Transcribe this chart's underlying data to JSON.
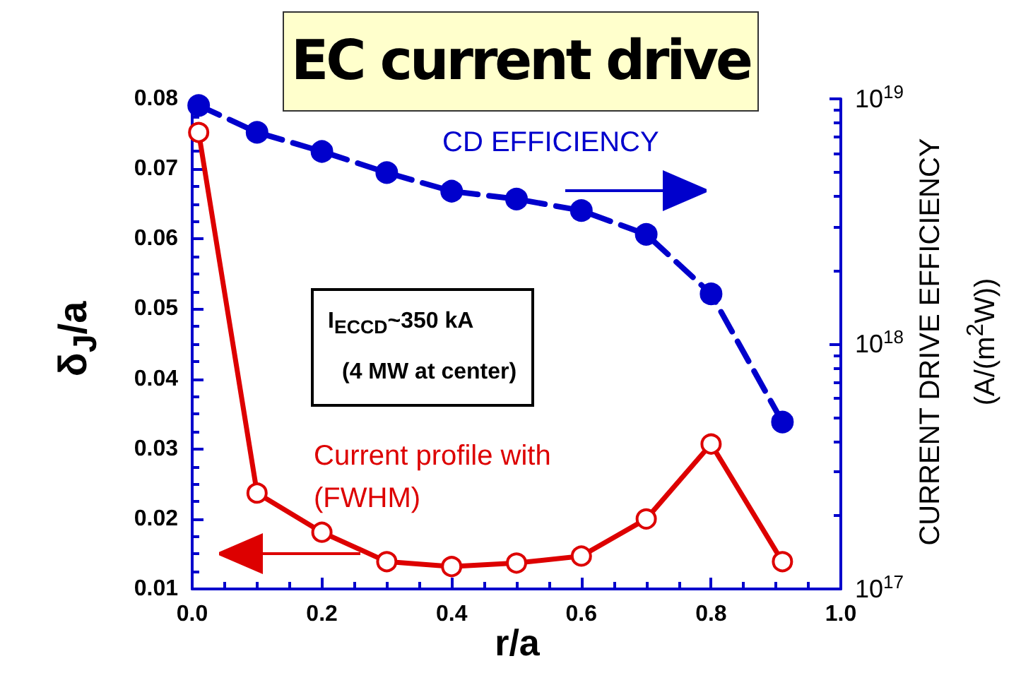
{
  "chart_data": {
    "type": "line",
    "title": "EC current drive",
    "xlabel": "r/a",
    "ylabel": "δ$_{J}$/a",
    "y2label": "CURRENT DRIVE EFFICIENCY (A/(m$^{2}$W))",
    "x": [
      0.01,
      0.1,
      0.2,
      0.3,
      0.4,
      0.5,
      0.6,
      0.7,
      0.8,
      0.91
    ],
    "series": [
      {
        "name": "Current profile with (FWHM)",
        "color": "#dd0000",
        "values": [
          0.0752,
          0.0237,
          0.0181,
          0.0139,
          0.0132,
          0.0137,
          0.0147,
          0.02,
          0.0307,
          0.0139
        ],
        "marker": "circle",
        "line_style": "solid"
      },
      {
        "name": "CD EFFICIENCY",
        "color": "#0000cc",
        "axis": "y2",
        "values": [
          9.4e+18,
          7.3e+18,
          6.1e+18,
          5e+18,
          4.2e+18,
          3.9e+18,
          3.5e+18,
          2.8e+18,
          1.6e+18,
          4.8e+17
        ],
        "marker": "circle",
        "line_style": "dashed"
      }
    ],
    "xlim": [
      0,
      1
    ],
    "xticks": [
      {
        "value": 0,
        "label": "0.0"
      },
      0.2,
      0.4,
      0.6,
      0.8,
      {
        "value": 1,
        "label": "1.0"
      }
    ],
    "ylim": [
      0.01,
      0.08
    ],
    "yticks": [
      0.01,
      0.02,
      0.03,
      0.04,
      0.05,
      0.06,
      0.07,
      0.08
    ],
    "y2lim": [
      1e+17,
      1e+19
    ],
    "y2ticks": [
      {
        "value": 1e+17,
        "label": "10$^{17}$"
      },
      {
        "value": 1e+18,
        "label": "10$^{18}$"
      },
      {
        "value": 1e+19,
        "label": "10$^{19}$"
      }
    ],
    "log": "y2",
    "grid": false,
    "annotations": [
      "I$_{ECCD}$~350 kA",
      "(4 MW at center)"
    ]
  }
}
